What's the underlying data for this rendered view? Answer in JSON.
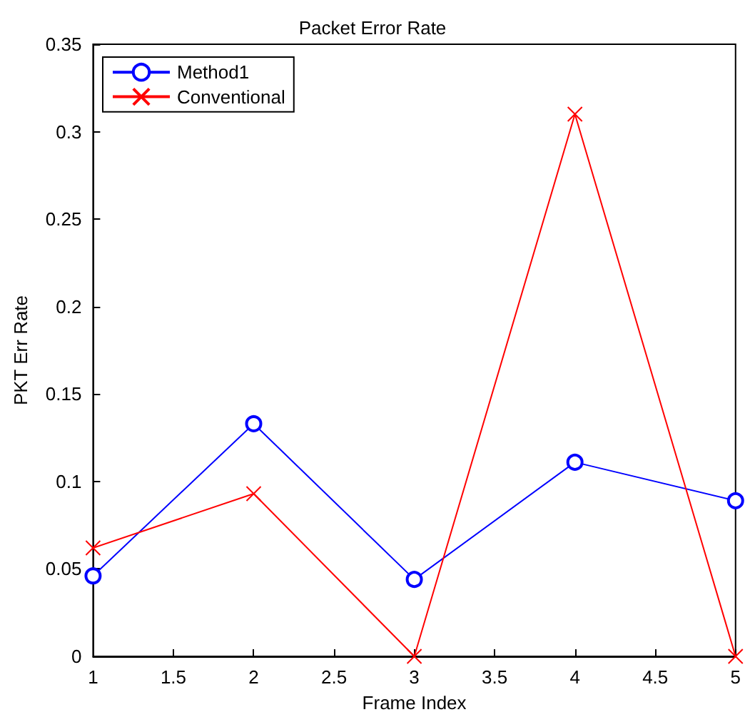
{
  "chart_data": {
    "type": "line",
    "title": "Packet Error Rate",
    "xlabel": "Frame Index",
    "ylabel": "PKT Err Rate",
    "x": [
      1,
      2,
      3,
      4,
      5
    ],
    "series": [
      {
        "name": "Method1",
        "color": "#0000ff",
        "marker": "circle",
        "values": [
          0.046,
          0.133,
          0.044,
          0.111,
          0.089
        ]
      },
      {
        "name": "Conventional",
        "color": "#ff0000",
        "marker": "cross",
        "values": [
          0.062,
          0.093,
          0,
          0.31,
          0
        ]
      }
    ],
    "xlim": [
      1,
      5
    ],
    "xticks": [
      1,
      1.5,
      2,
      2.5,
      3,
      3.5,
      4,
      4.5,
      5
    ],
    "ylim": [
      0,
      0.35
    ],
    "yticks": [
      0,
      0.05,
      0.1,
      0.15,
      0.2,
      0.25,
      0.3,
      0.35
    ],
    "grid": false,
    "legend": "top left",
    "line_style": "solid"
  }
}
